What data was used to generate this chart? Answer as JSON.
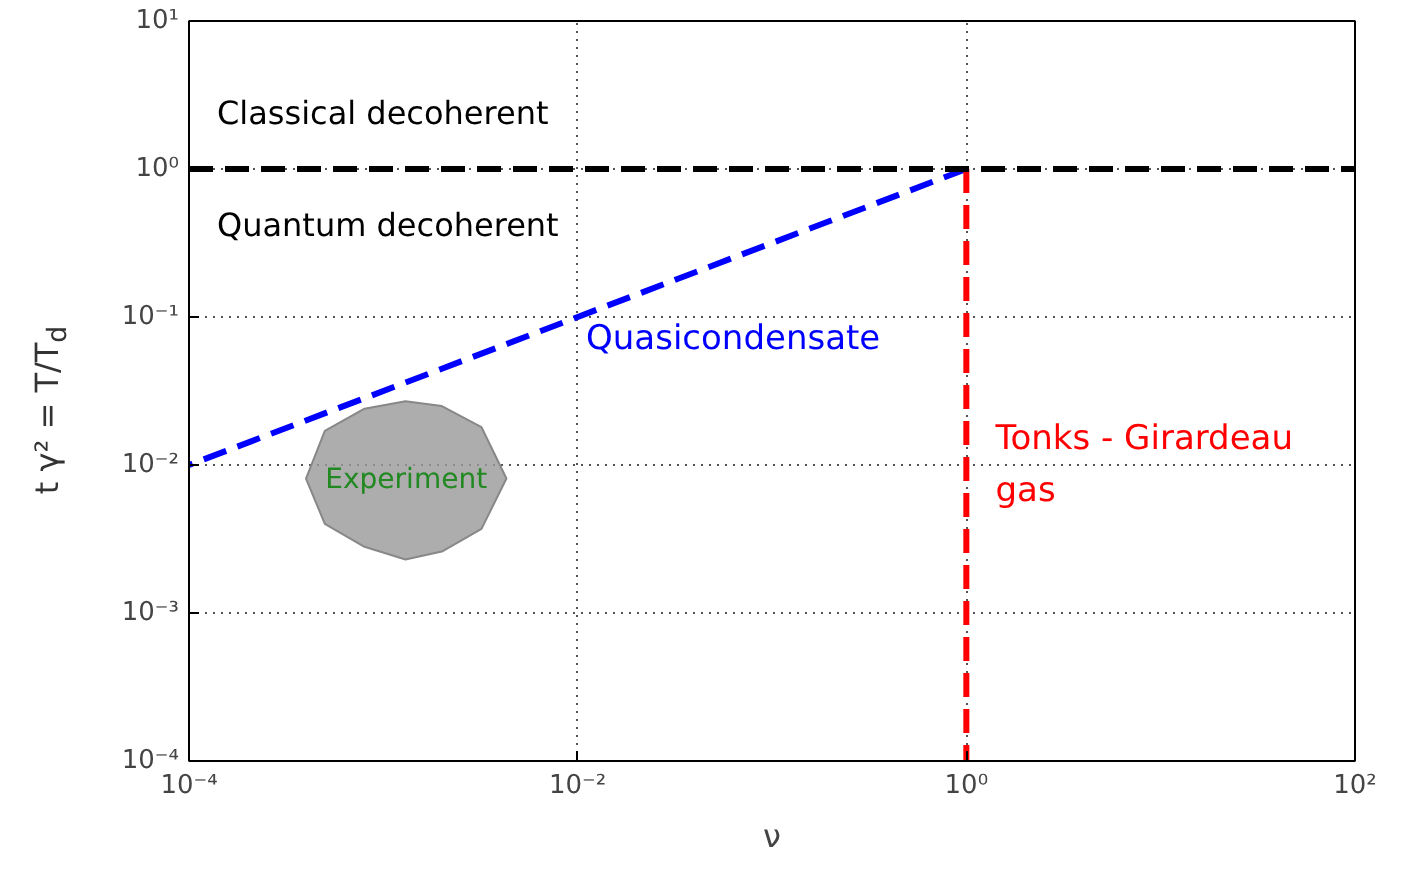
{
  "chart_data": {
    "type": "line",
    "xlabel": "ν",
    "ylabel": "t γ² = T/T$_{d}$",
    "log": "xy",
    "grid": true,
    "line_style": "dashed",
    "marker": "none",
    "xlim": [
      0.0001,
      100
    ],
    "ylim": [
      0.0001,
      10
    ],
    "xticks": [
      {
        "value": 0.0001,
        "label": "10⁻⁴"
      },
      {
        "value": 0.01,
        "label": "10⁻²"
      },
      {
        "value": 1,
        "label": "10⁰"
      },
      {
        "value": 100,
        "label": "10²"
      }
    ],
    "yticks": [
      {
        "value": 0.0001,
        "label": "10⁻⁴"
      },
      {
        "value": 0.001,
        "label": "10⁻³"
      },
      {
        "value": 0.01,
        "label": "10⁻²"
      },
      {
        "value": 0.1,
        "label": "10⁻¹"
      },
      {
        "value": 1,
        "label": "10⁰"
      },
      {
        "value": 10,
        "label": "10¹"
      }
    ],
    "series": [
      {
        "name": "Quasicondensate",
        "color": "#0000ff",
        "x": [
          0.0001,
          1
        ],
        "values": [
          0.01,
          1
        ]
      },
      {
        "name": "Tonks - Girardeau\ngas",
        "color": "#ff0000",
        "x": [
          1,
          1
        ],
        "values": [
          0.0001,
          1
        ]
      },
      {
        "name": "Experiment",
        "type": "area",
        "color": "#999999",
        "x": [
          0.0004,
          0.0005,
          0.0008,
          0.0013,
          0.002,
          0.0032,
          0.0043,
          0.0032,
          0.002,
          0.0013,
          0.0008,
          0.0005
        ],
        "values": [
          0.0081,
          0.017,
          0.024,
          0.027,
          0.025,
          0.018,
          0.0081,
          0.0037,
          0.0026,
          0.0023,
          0.0028,
          0.004
        ]
      }
    ],
    "ref_lines": [
      {
        "axis": "y",
        "value": 1,
        "color": "#000000",
        "line_style": "dashed"
      }
    ],
    "annotations": [
      "Classical decoherent",
      "Quantum decoherent"
    ]
  }
}
